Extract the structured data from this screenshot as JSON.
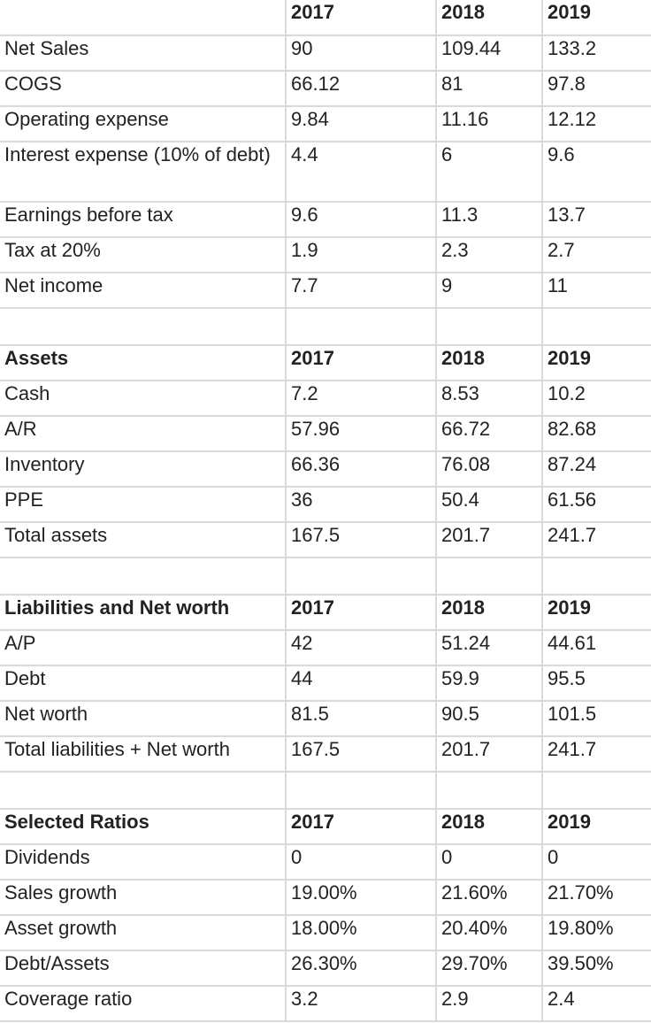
{
  "header": [
    "",
    "2017",
    "2018",
    "2019"
  ],
  "income_statement": [
    {
      "label": "Net Sales",
      "values": [
        "90",
        "109.44",
        "133.2"
      ]
    },
    {
      "label": "COGS",
      "values": [
        "66.12",
        "81",
        "97.8"
      ]
    },
    {
      "label": "Operating expense",
      "values": [
        "9.84",
        "11.16",
        "12.12"
      ]
    },
    {
      "label": "Interest expense (10% of debt)",
      "values": [
        "4.4",
        "6",
        "9.6"
      ]
    },
    {
      "label": "Earnings before tax",
      "values": [
        "9.6",
        "11.3",
        "13.7"
      ]
    },
    {
      "label": "Tax at 20%",
      "values": [
        "1.9",
        "2.3",
        "2.7"
      ]
    },
    {
      "label": "Net income",
      "values": [
        "7.7",
        "9",
        "11"
      ]
    }
  ],
  "assets_header": [
    "Assets",
    "2017",
    "2018",
    "2019"
  ],
  "assets": [
    {
      "label": "Cash",
      "values": [
        "7.2",
        "8.53",
        "10.2"
      ]
    },
    {
      "label": "A/R",
      "values": [
        "57.96",
        "66.72",
        "82.68"
      ]
    },
    {
      "label": "Inventory",
      "values": [
        "66.36",
        "76.08",
        "87.24"
      ]
    },
    {
      "label": "PPE",
      "values": [
        "36",
        "50.4",
        "61.56"
      ]
    },
    {
      "label": "Total assets",
      "values": [
        "167.5",
        "201.7",
        "241.7"
      ]
    }
  ],
  "liabilities_header": [
    "Liabilities and Net worth",
    "2017",
    "2018",
    "2019"
  ],
  "liabilities": [
    {
      "label": "A/P",
      "values": [
        "42",
        "51.24",
        "44.61"
      ]
    },
    {
      "label": "Debt",
      "values": [
        "44",
        "59.9",
        "95.5"
      ]
    },
    {
      "label": "Net worth",
      "values": [
        "81.5",
        "90.5",
        "101.5"
      ]
    },
    {
      "label": "Total liabilities + Net worth",
      "values": [
        "167.5",
        "201.7",
        "241.7"
      ]
    }
  ],
  "ratios_header": [
    "Selected Ratios",
    "2017",
    "2018",
    "2019"
  ],
  "ratios": [
    {
      "label": "Dividends",
      "values": [
        "0",
        "0",
        "0"
      ]
    },
    {
      "label": "Sales growth",
      "values": [
        "19.00%",
        "21.60%",
        "21.70%"
      ]
    },
    {
      "label": "Asset growth",
      "values": [
        "18.00%",
        "20.40%",
        "19.80%"
      ]
    },
    {
      "label": "Debt/Assets",
      "values": [
        "26.30%",
        "29.70%",
        "39.50%"
      ]
    },
    {
      "label": "Coverage ratio",
      "values": [
        "3.2",
        "2.9",
        "2.4"
      ]
    }
  ]
}
